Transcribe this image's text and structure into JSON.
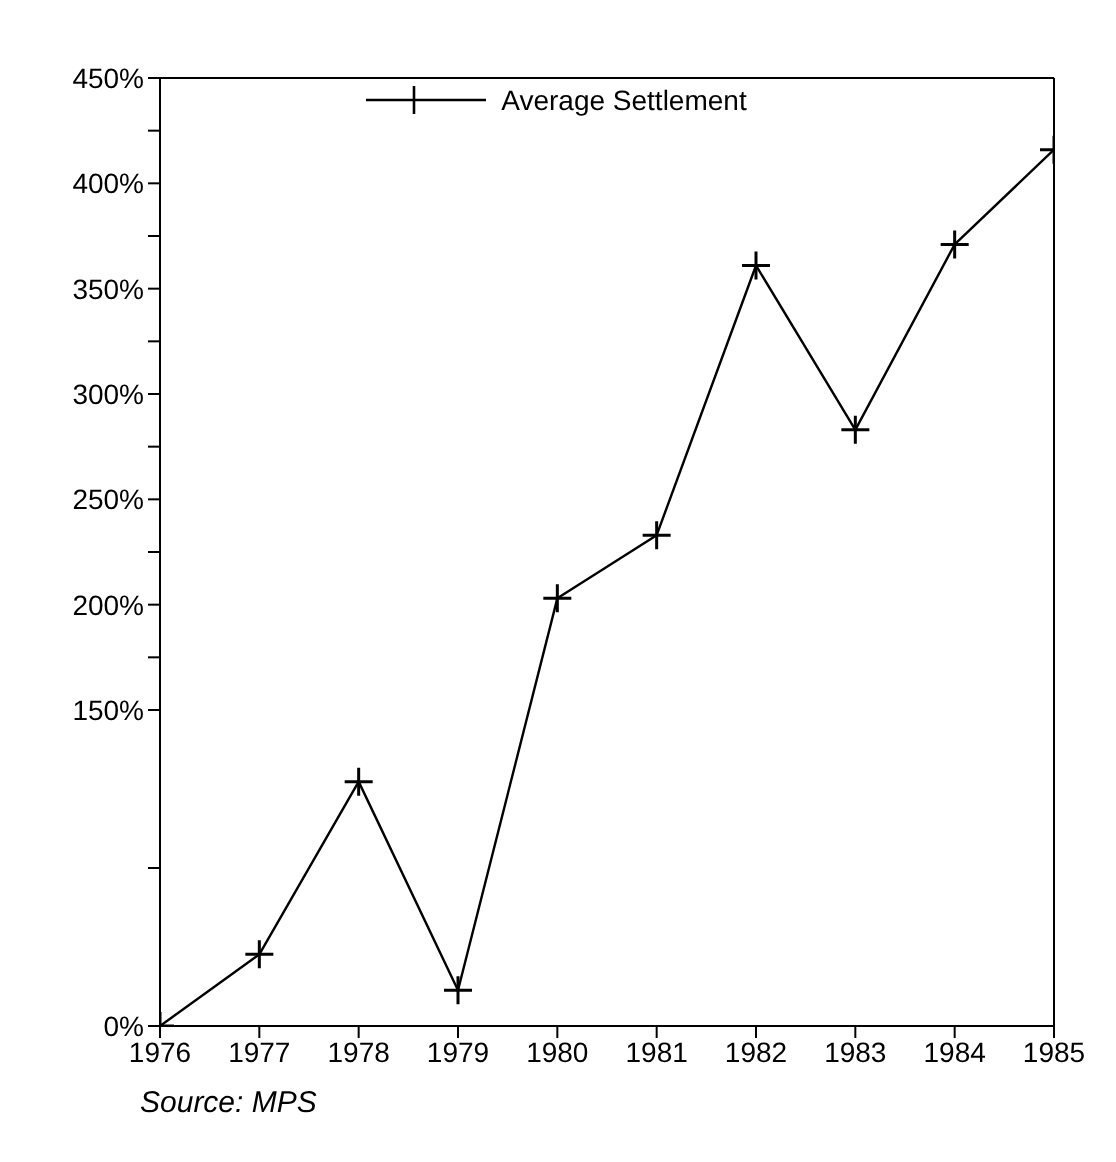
{
  "chart_data": {
    "type": "line",
    "categories": [
      "1976",
      "1977",
      "1978",
      "1979",
      "1980",
      "1981",
      "1982",
      "1983",
      "1984",
      "1985"
    ],
    "series": [
      {
        "name": "Average Settlement",
        "color": "#000000",
        "values": [
          0,
          34,
          116,
          17,
          203,
          233,
          361,
          283,
          371,
          416
        ]
      }
    ],
    "ylim": [
      0,
      450
    ],
    "yticks": [
      {
        "value": 0,
        "label": "0%"
      },
      {
        "value": 75,
        "label": null
      },
      {
        "value": 150,
        "label": "150%"
      },
      {
        "value": 175,
        "label": null
      },
      {
        "value": 200,
        "label": "200%"
      },
      {
        "value": 225,
        "label": null
      },
      {
        "value": 250,
        "label": "250%"
      },
      {
        "value": 275,
        "label": null
      },
      {
        "value": 300,
        "label": "300%"
      },
      {
        "value": 325,
        "label": null
      },
      {
        "value": 350,
        "label": "350%"
      },
      {
        "value": 375,
        "label": null
      },
      {
        "value": 400,
        "label": "400%"
      },
      {
        "value": 425,
        "label": null
      },
      {
        "value": 450,
        "label": "450%"
      }
    ],
    "marker": "cross",
    "line_style": "solid",
    "grid": false,
    "legend": "top",
    "annotations": [
      "Source: MPS"
    ]
  }
}
